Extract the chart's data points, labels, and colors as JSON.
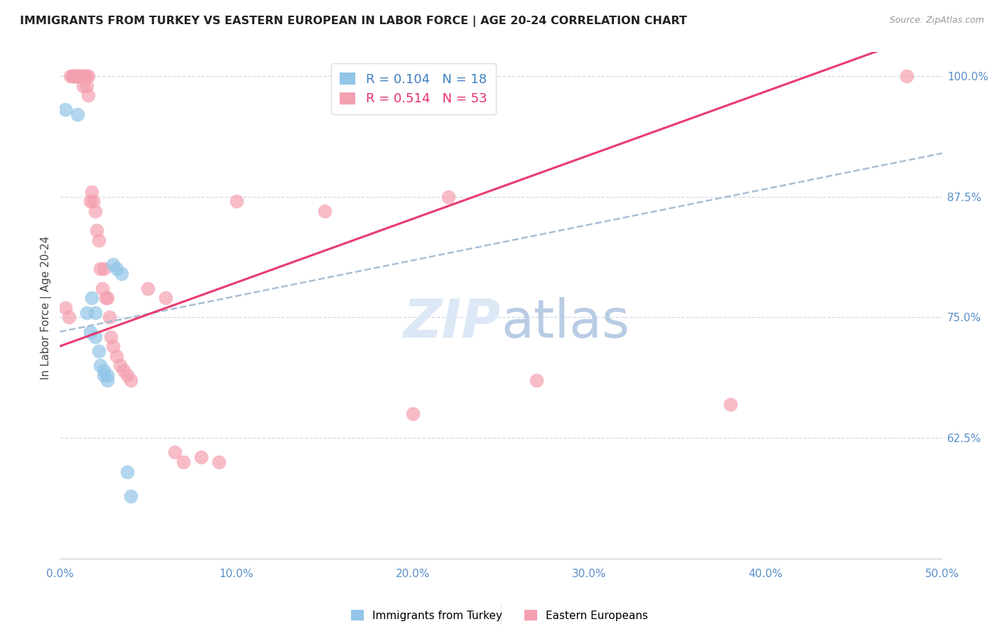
{
  "title": "IMMIGRANTS FROM TURKEY VS EASTERN EUROPEAN IN LABOR FORCE | AGE 20-24 CORRELATION CHART",
  "source": "Source: ZipAtlas.com",
  "ylabel": "In Labor Force | Age 20-24",
  "xlim": [
    0.0,
    0.5
  ],
  "ylim": [
    0.5,
    1.02
  ],
  "yticks": [
    0.625,
    0.75,
    0.875,
    1.0
  ],
  "ytick_labels": [
    "62.5%",
    "75.0%",
    "87.5%",
    "100.0%"
  ],
  "xticks": [
    0.0,
    0.1,
    0.2,
    0.3,
    0.4,
    0.5
  ],
  "xtick_labels": [
    "0.0%",
    "10.0%",
    "20.0%",
    "30.0%",
    "40.0%",
    "50.0%"
  ],
  "turkey_R": 0.104,
  "turkey_N": 18,
  "eastern_R": 0.514,
  "eastern_N": 53,
  "turkey_color": "#92c5e8",
  "eastern_color": "#f4a0b0",
  "turkey_line_color": "#4080c0",
  "eastern_line_color": "#e8306880",
  "grid_color": "#d0d8e8",
  "axis_color": "#5a8fc8",
  "watermark_color": "#dce8f5",
  "turkey_scatter_x": [
    0.003,
    0.01,
    0.015,
    0.017,
    0.018,
    0.02,
    0.02,
    0.022,
    0.023,
    0.025,
    0.025,
    0.027,
    0.027,
    0.03,
    0.032,
    0.035,
    0.038,
    0.04
  ],
  "turkey_scatter_y": [
    0.965,
    0.96,
    0.755,
    0.735,
    0.77,
    0.755,
    0.73,
    0.715,
    0.7,
    0.695,
    0.69,
    0.69,
    0.685,
    0.805,
    0.8,
    0.795,
    0.59,
    0.565
  ],
  "eastern_scatter_x": [
    0.003,
    0.005,
    0.006,
    0.007,
    0.007,
    0.008,
    0.009,
    0.009,
    0.009,
    0.01,
    0.01,
    0.011,
    0.012,
    0.012,
    0.013,
    0.013,
    0.014,
    0.015,
    0.015,
    0.016,
    0.016,
    0.017,
    0.018,
    0.019,
    0.02,
    0.021,
    0.022,
    0.023,
    0.024,
    0.025,
    0.026,
    0.027,
    0.028,
    0.029,
    0.03,
    0.032,
    0.034,
    0.036,
    0.038,
    0.04,
    0.05,
    0.06,
    0.065,
    0.07,
    0.08,
    0.09,
    0.1,
    0.15,
    0.2,
    0.22,
    0.27,
    0.38,
    0.48
  ],
  "eastern_scatter_y": [
    0.76,
    0.75,
    1.0,
    1.0,
    1.0,
    1.0,
    1.0,
    1.0,
    1.0,
    1.0,
    1.0,
    1.0,
    1.0,
    1.0,
    1.0,
    0.99,
    1.0,
    1.0,
    0.99,
    1.0,
    0.98,
    0.87,
    0.88,
    0.87,
    0.86,
    0.84,
    0.83,
    0.8,
    0.78,
    0.8,
    0.77,
    0.77,
    0.75,
    0.73,
    0.72,
    0.71,
    0.7,
    0.695,
    0.69,
    0.685,
    0.78,
    0.77,
    0.61,
    0.6,
    0.605,
    0.6,
    0.87,
    0.86,
    0.65,
    0.875,
    0.685,
    0.66,
    1.0
  ]
}
